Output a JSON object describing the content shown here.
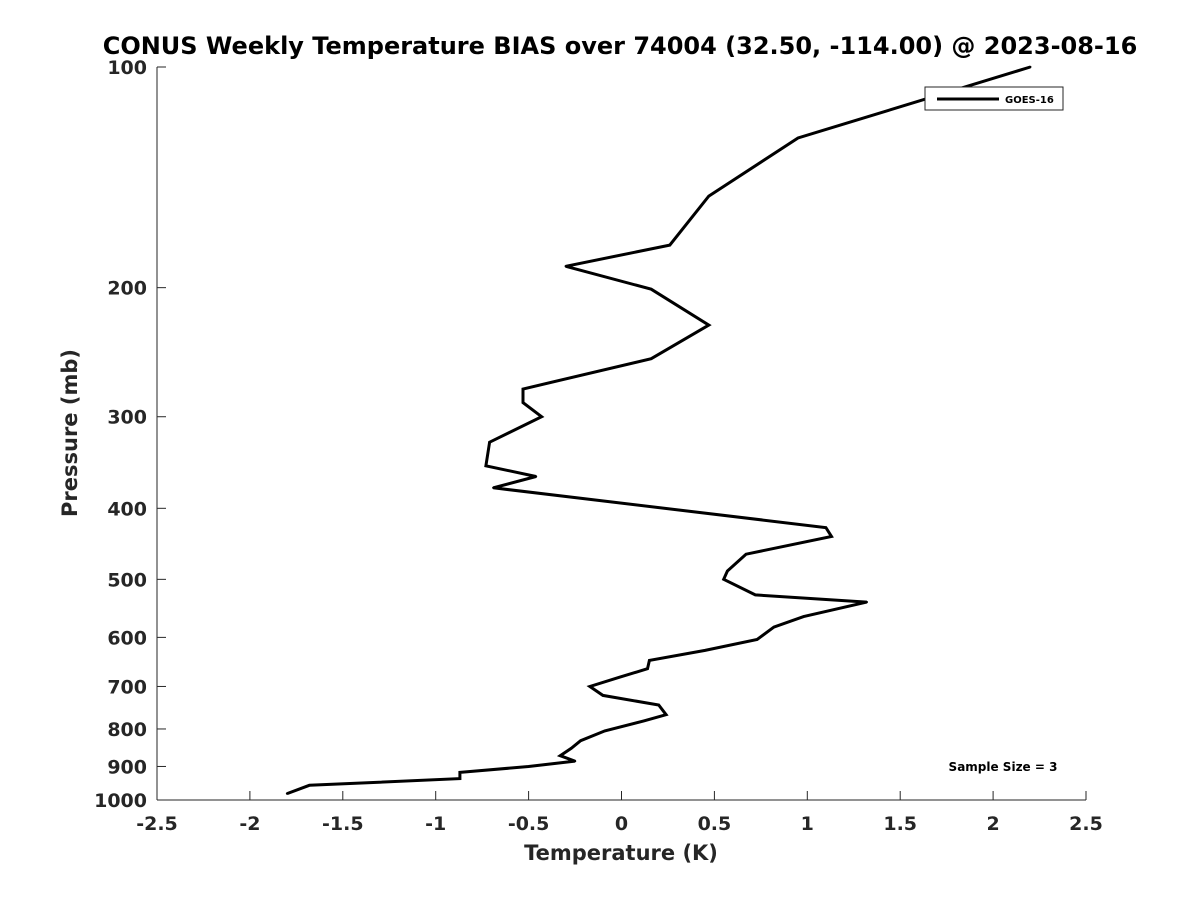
{
  "chart_data": {
    "type": "line",
    "title": "CONUS Weekly Temperature BIAS over 74004 (32.50, -114.00) @ 2023-08-16",
    "xlabel": "Temperature (K)",
    "ylabel": "Pressure (mb)",
    "xlim": [
      -2.5,
      2.5
    ],
    "ylim": [
      1000,
      100
    ],
    "yscale": "log",
    "yreverse": true,
    "grid": false,
    "legend_position": "top-right",
    "x_ticks": [
      -2.5,
      -2,
      -1.5,
      -1,
      -0.5,
      0,
      0.5,
      1,
      1.5,
      2,
      2.5
    ],
    "x_tick_labels": [
      "-2.5",
      "-2",
      "-1.5",
      "-1",
      "-0.5",
      "0",
      "0.5",
      "1",
      "1.5",
      "2",
      "2.5"
    ],
    "y_ticks": [
      100,
      200,
      300,
      400,
      500,
      600,
      700,
      800,
      900,
      1000
    ],
    "y_tick_labels": [
      "100",
      "200",
      "300",
      "400",
      "500",
      "600",
      "700",
      "800",
      "900",
      "1000"
    ],
    "series": [
      {
        "name": "GOES-16",
        "color": "#000000",
        "points": [
          {
            "x": 2.2,
            "y": 100
          },
          {
            "x": 0.95,
            "y": 125
          },
          {
            "x": 0.47,
            "y": 150
          },
          {
            "x": 0.26,
            "y": 175
          },
          {
            "x": -0.3,
            "y": 187
          },
          {
            "x": 0.16,
            "y": 201
          },
          {
            "x": 0.47,
            "y": 225
          },
          {
            "x": 0.16,
            "y": 250
          },
          {
            "x": -0.53,
            "y": 275
          },
          {
            "x": -0.53,
            "y": 287
          },
          {
            "x": -0.43,
            "y": 300
          },
          {
            "x": -0.71,
            "y": 325
          },
          {
            "x": -0.73,
            "y": 350
          },
          {
            "x": -0.46,
            "y": 362
          },
          {
            "x": -0.69,
            "y": 375
          },
          {
            "x": 1.1,
            "y": 425
          },
          {
            "x": 1.13,
            "y": 437
          },
          {
            "x": 0.67,
            "y": 462
          },
          {
            "x": 0.57,
            "y": 487
          },
          {
            "x": 0.55,
            "y": 500
          },
          {
            "x": 0.72,
            "y": 525
          },
          {
            "x": 1.32,
            "y": 537
          },
          {
            "x": 0.98,
            "y": 562
          },
          {
            "x": 0.82,
            "y": 581
          },
          {
            "x": 0.73,
            "y": 604
          },
          {
            "x": 0.45,
            "y": 625
          },
          {
            "x": 0.15,
            "y": 645
          },
          {
            "x": 0.14,
            "y": 662
          },
          {
            "x": -0.01,
            "y": 680
          },
          {
            "x": -0.17,
            "y": 700
          },
          {
            "x": -0.1,
            "y": 720
          },
          {
            "x": 0.2,
            "y": 742
          },
          {
            "x": 0.24,
            "y": 765
          },
          {
            "x": 0.12,
            "y": 780
          },
          {
            "x": -0.09,
            "y": 805
          },
          {
            "x": -0.22,
            "y": 830
          },
          {
            "x": -0.27,
            "y": 850
          },
          {
            "x": -0.33,
            "y": 870
          },
          {
            "x": -0.25,
            "y": 885
          },
          {
            "x": -0.5,
            "y": 900
          },
          {
            "x": -0.87,
            "y": 917
          },
          {
            "x": -0.87,
            "y": 935
          },
          {
            "x": -1.68,
            "y": 955
          },
          {
            "x": -1.8,
            "y": 980
          }
        ]
      }
    ],
    "annotations": [
      {
        "text": "Sample Size = 3",
        "position": "bottom-right"
      }
    ]
  }
}
